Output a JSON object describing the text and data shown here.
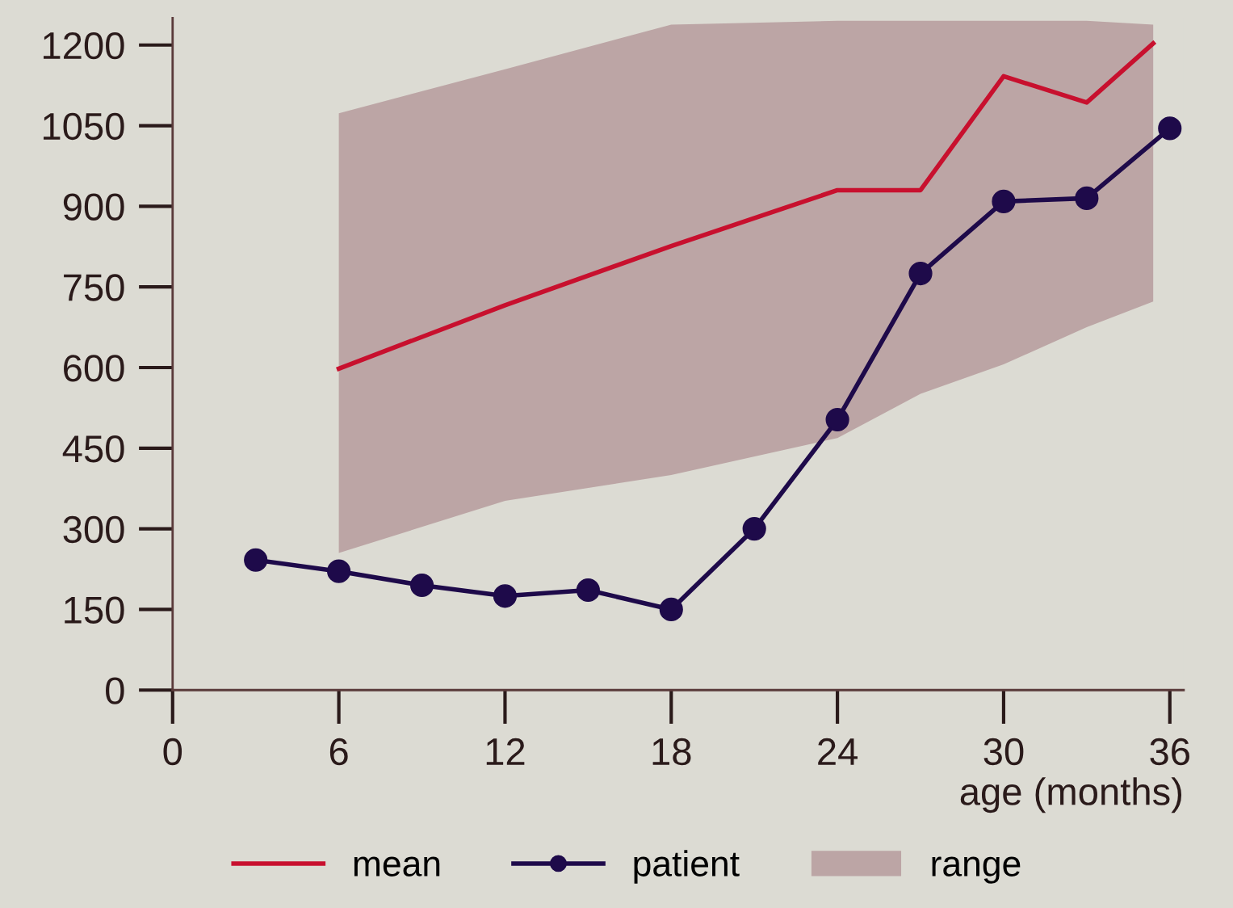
{
  "chart_data": {
    "type": "line",
    "xlabel": "age (months)",
    "x": [
      3,
      6,
      9,
      12,
      15,
      18,
      21,
      24,
      27,
      30,
      33,
      36
    ],
    "series": [
      {
        "name": "mean",
        "color": "#c8102e",
        "marker": "none",
        "x": [
          6,
          12,
          18,
          24,
          27,
          30,
          33,
          35.4
        ],
        "values": [
          598,
          716,
          826,
          930,
          930,
          1142,
          1093,
          1203
        ]
      },
      {
        "name": "patient",
        "color": "#1e0a4a",
        "marker": "circle",
        "values": [
          242,
          221,
          195,
          175,
          186,
          150,
          300,
          503,
          775,
          909,
          915,
          1045
        ]
      },
      {
        "name": "range",
        "color": "#bca5a5",
        "x": [
          6,
          12,
          18,
          24,
          27,
          30,
          33,
          35.4
        ],
        "values": [
          null,
          null,
          null,
          null,
          null,
          null,
          null,
          null
        ],
        "lower": [
          255,
          352,
          400,
          469,
          551,
          606,
          675,
          723
        ],
        "upper": [
          1073,
          1155,
          1238,
          1245,
          1245,
          1245,
          1245,
          1238
        ]
      }
    ],
    "xlim": [
      0,
      36.5
    ],
    "xticks": [
      0,
      6,
      12,
      18,
      24,
      30,
      36
    ],
    "ylim": [
      0,
      1250
    ],
    "yticks": [
      0,
      150,
      300,
      450,
      600,
      750,
      900,
      1050,
      1200
    ],
    "grid": false,
    "legend": "bottom",
    "line_style": "solid"
  }
}
